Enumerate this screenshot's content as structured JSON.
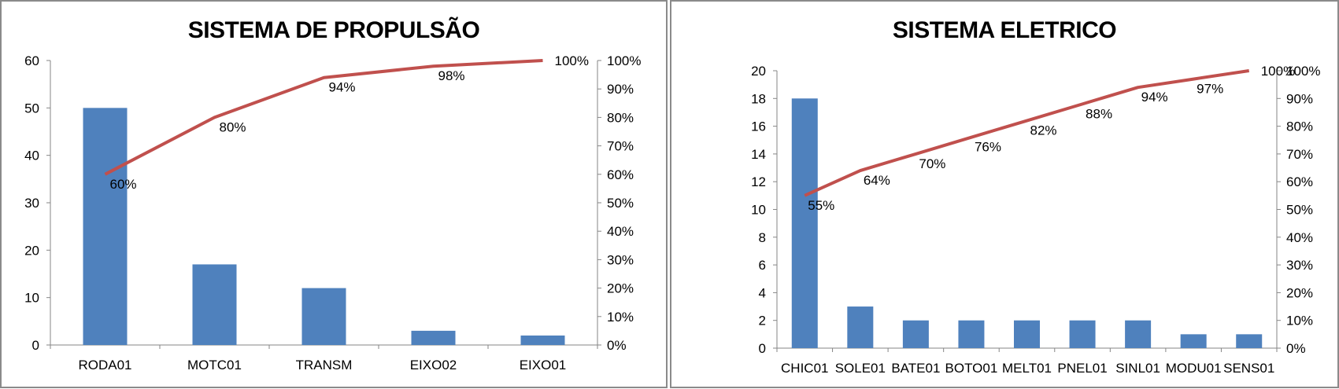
{
  "colors": {
    "bar": "#4f81bd",
    "line": "#c0504d",
    "axis": "#868686"
  },
  "chart_data": [
    {
      "type": "bar",
      "title": "SISTEMA DE PROPULSÃO",
      "categories": [
        "RODA01",
        "MOTC01",
        "TRANSM",
        "EIXO02",
        "EIXO01"
      ],
      "series": [
        {
          "values": [
            50,
            17,
            12,
            3,
            2
          ]
        },
        {
          "values": [
            60,
            80,
            94,
            98,
            100
          ]
        }
      ],
      "cumulative_labels": [
        "60%",
        "80%",
        "94%",
        "98%",
        "100%"
      ],
      "ylim": [
        0,
        60
      ],
      "y_ticks": [
        "0",
        "10",
        "20",
        "30",
        "40",
        "50",
        "60"
      ],
      "y2lim": [
        0,
        100
      ],
      "y2_ticks": [
        "0%",
        "10%",
        "20%",
        "30%",
        "40%",
        "50%",
        "60%",
        "70%",
        "80%",
        "90%",
        "100%"
      ],
      "xlabel": "",
      "ylabel": "",
      "grid": false
    },
    {
      "type": "bar",
      "title": "SISTEMA ELETRICO",
      "categories": [
        "CHIC01",
        "SOLE01",
        "BATE01",
        "BOTO01",
        "MELT01",
        "PNEL01",
        "SINL01",
        "MODU01",
        "SENS01"
      ],
      "series": [
        {
          "values": [
            18,
            3,
            2,
            2,
            2,
            2,
            2,
            1,
            1
          ]
        },
        {
          "values": [
            55,
            64,
            70,
            76,
            82,
            88,
            94,
            97,
            100
          ]
        }
      ],
      "cumulative_labels": [
        "55%",
        "64%",
        "70%",
        "76%",
        "82%",
        "88%",
        "94%",
        "97%",
        "100%"
      ],
      "ylim": [
        0,
        20
      ],
      "y_ticks": [
        "0",
        "2",
        "4",
        "6",
        "8",
        "10",
        "12",
        "14",
        "16",
        "18",
        "20"
      ],
      "y2lim": [
        0,
        100
      ],
      "y2_ticks": [
        "0%",
        "10%",
        "20%",
        "30%",
        "40%",
        "50%",
        "60%",
        "70%",
        "80%",
        "90%",
        "100%"
      ],
      "xlabel": "",
      "ylabel": "",
      "grid": false
    }
  ]
}
